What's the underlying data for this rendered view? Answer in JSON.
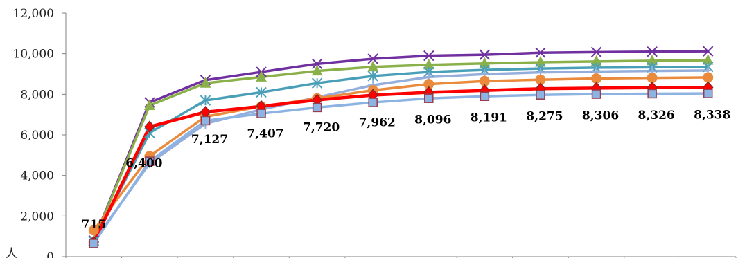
{
  "chart_data": {
    "type": "line",
    "title": "",
    "xlabel": "",
    "ylabel": "人",
    "ylim": [
      0,
      12000
    ],
    "yticks": [
      "0",
      "2,000",
      "4,000",
      "6,000",
      "8,000",
      "10,000",
      "12,000"
    ],
    "ytick_values": [
      0,
      2000,
      4000,
      6000,
      8000,
      10000,
      12000
    ],
    "grid": false,
    "legend": "none",
    "x": [
      1,
      2,
      3,
      4,
      5,
      6,
      7,
      8,
      9,
      10,
      11,
      12
    ],
    "series": [
      {
        "color": "#7030a0",
        "marker": "x",
        "values": [
          800,
          7600,
          8700,
          9100,
          9500,
          9750,
          9900,
          9950,
          10050,
          10080,
          10100,
          10120
        ]
      },
      {
        "color": "#8ab04a",
        "marker": "triangle",
        "values": [
          780,
          7450,
          8550,
          8850,
          9150,
          9350,
          9450,
          9520,
          9580,
          9620,
          9650,
          9680
        ]
      },
      {
        "color": "#4a9fb8",
        "marker": "star",
        "values": [
          760,
          6100,
          7700,
          8100,
          8550,
          8900,
          9100,
          9200,
          9270,
          9310,
          9330,
          9350
        ]
      },
      {
        "color": "#95aedb",
        "marker": "plus",
        "values": [
          750,
          4600,
          6550,
          7250,
          7850,
          8450,
          8850,
          8990,
          9080,
          9120,
          9150,
          9170
        ]
      },
      {
        "color": "#e98a3c",
        "marker": "circle",
        "values": [
          1300,
          4950,
          6900,
          7400,
          7800,
          8200,
          8500,
          8650,
          8720,
          8780,
          8810,
          8830
        ]
      },
      {
        "color": "#ff0000",
        "marker": "diamond",
        "values": [
          715,
          6400,
          7127,
          7407,
          7720,
          7962,
          8096,
          8191,
          8275,
          8306,
          8326,
          8338
        ],
        "labels": [
          "715",
          "6,400",
          "7,127",
          "7,407",
          "7,720",
          "7,962",
          "8,096",
          "8,191",
          "8,275",
          "8,306",
          "8,326",
          "8,338"
        ]
      },
      {
        "color": "#8db3e2",
        "marker": "square",
        "values": [
          650,
          4700,
          6700,
          7050,
          7350,
          7600,
          7800,
          7900,
          7970,
          8010,
          8030,
          8040
        ]
      }
    ]
  }
}
